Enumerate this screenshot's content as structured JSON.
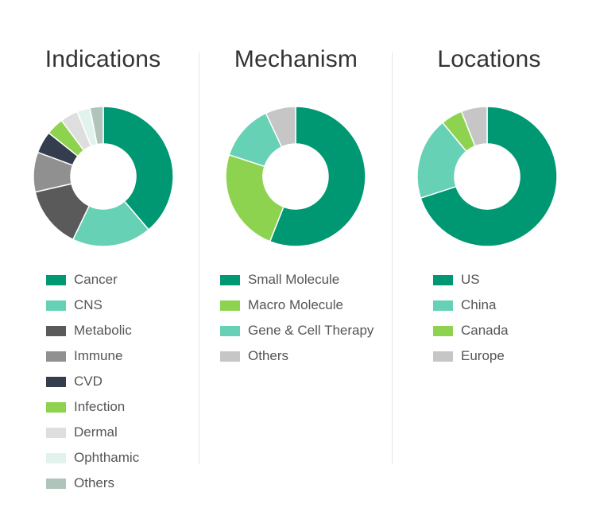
{
  "chart_data": [
    {
      "type": "pie",
      "title": "Indications",
      "categories": [
        "Cancer",
        "CNS",
        "Metabolic",
        "Immune",
        "CVD",
        "Infection",
        "Dermal",
        "Ophthamic",
        "Others"
      ],
      "values": [
        38,
        18,
        14,
        9,
        5,
        4,
        4,
        3,
        3
      ],
      "colors": [
        "#009872",
        "#66d1b4",
        "#5a5a5a",
        "#909090",
        "#333d4e",
        "#8ed350",
        "#dedede",
        "#e2f3ee",
        "#b0c4bc"
      ]
    },
    {
      "type": "pie",
      "title": "Mechanism",
      "categories": [
        "Small Molecule",
        "Macro Molecule",
        "Gene & Cell Therapy",
        "Others"
      ],
      "values": [
        56,
        24,
        13,
        7
      ],
      "colors": [
        "#009872",
        "#8ed350",
        "#66d1b4",
        "#c6c6c6"
      ]
    },
    {
      "type": "pie",
      "title": "Locations",
      "categories": [
        "US",
        "China",
        "Canada",
        "Europe"
      ],
      "values": [
        70,
        19,
        5,
        6
      ],
      "colors": [
        "#009872",
        "#66d1b4",
        "#8ed350",
        "#c6c6c6"
      ]
    }
  ]
}
